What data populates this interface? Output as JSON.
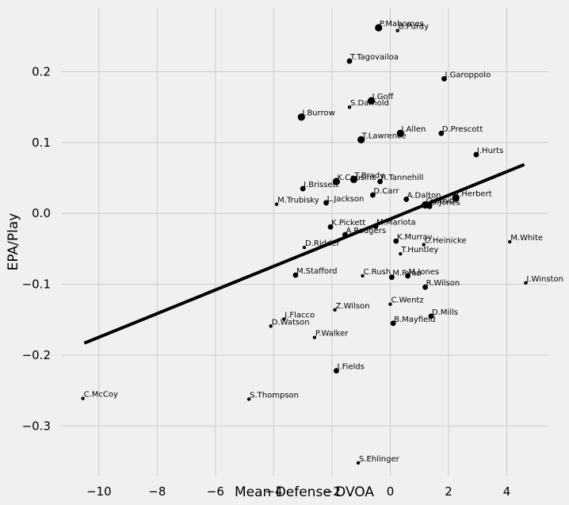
{
  "chart_data": {
    "type": "scatter",
    "title": "",
    "xlabel": "Mean Defense DVOA",
    "ylabel": "EPA/Play",
    "xlim": [
      -11.3,
      5.4
    ],
    "ylim": [
      -0.37,
      0.29
    ],
    "xticks": [
      -10,
      -8,
      -6,
      -4,
      -2,
      0,
      2,
      4
    ],
    "xtick_labels": [
      "−10",
      "−8",
      "−6",
      "−4",
      "−2",
      "0",
      "2",
      "4"
    ],
    "yticks": [
      -0.3,
      -0.2,
      -0.1,
      0.0,
      0.1,
      0.2
    ],
    "ytick_labels": [
      "−0.3",
      "−0.2",
      "−0.1",
      "0.0",
      "0.1",
      "0.2"
    ],
    "grid": true,
    "trendline": {
      "x": [
        -10.5,
        4.6
      ],
      "y": [
        -0.183,
        0.069
      ]
    },
    "points": [
      {
        "label": "P.Mahomes",
        "x": -0.4,
        "y": 0.262,
        "size": "large"
      },
      {
        "label": "B.Purdy",
        "x": 0.25,
        "y": 0.258,
        "size": "small"
      },
      {
        "label": "T.Tagovailoa",
        "x": -1.4,
        "y": 0.215,
        "size": "medium"
      },
      {
        "label": "J.Garoppolo",
        "x": 1.85,
        "y": 0.19,
        "size": "medium"
      },
      {
        "label": "J.Goff",
        "x": -0.65,
        "y": 0.159,
        "size": "large"
      },
      {
        "label": "S.Darnold",
        "x": -1.4,
        "y": 0.15,
        "size": "small"
      },
      {
        "label": "J.Burrow",
        "x": -3.05,
        "y": 0.136,
        "size": "large"
      },
      {
        "label": "J.Allen",
        "x": 0.35,
        "y": 0.113,
        "size": "large"
      },
      {
        "label": "D.Prescott",
        "x": 1.75,
        "y": 0.113,
        "size": "medium"
      },
      {
        "label": "T.Lawrence",
        "x": -1.0,
        "y": 0.104,
        "size": "large"
      },
      {
        "label": "J.Hurts",
        "x": 2.95,
        "y": 0.083,
        "size": "medium"
      },
      {
        "label": "K.Cousins",
        "x": -1.85,
        "y": 0.045,
        "size": "large"
      },
      {
        "label": "T.Brady",
        "x": -1.25,
        "y": 0.048,
        "size": "large"
      },
      {
        "label": "R.Tannehill",
        "x": -0.35,
        "y": 0.045,
        "size": "medium"
      },
      {
        "label": "J.Brissett",
        "x": -3.0,
        "y": 0.035,
        "size": "medium"
      },
      {
        "label": "D.Carr",
        "x": -0.6,
        "y": 0.026,
        "size": "medium"
      },
      {
        "label": "A.Dalton",
        "x": 0.55,
        "y": 0.02,
        "size": "medium"
      },
      {
        "label": "J.Herbert",
        "x": 2.25,
        "y": 0.022,
        "size": "large"
      },
      {
        "label": "G.Smith",
        "x": 1.2,
        "y": 0.012,
        "size": "large"
      },
      {
        "label": "D.Jones",
        "x": 1.35,
        "y": 0.01,
        "size": "medium"
      },
      {
        "label": "M.Trubisky",
        "x": -3.9,
        "y": 0.013,
        "size": "small"
      },
      {
        "label": "L.Jackson",
        "x": -2.2,
        "y": 0.015,
        "size": "medium"
      },
      {
        "label": "K.Pickett",
        "x": -2.05,
        "y": -0.019,
        "size": "medium"
      },
      {
        "label": "M.Mariota",
        "x": -0.5,
        "y": -0.018,
        "size": "medium"
      },
      {
        "label": "A.Rodgers",
        "x": -1.55,
        "y": -0.03,
        "size": "medium"
      },
      {
        "label": "K.Murray",
        "x": 0.2,
        "y": -0.039,
        "size": "medium"
      },
      {
        "label": "C.Heinicke",
        "x": 1.15,
        "y": -0.044,
        "size": "small"
      },
      {
        "label": "M.White",
        "x": 4.1,
        "y": -0.04,
        "size": "small"
      },
      {
        "label": "D.Ridder",
        "x": -2.95,
        "y": -0.048,
        "size": "small"
      },
      {
        "label": "T.Huntley",
        "x": 0.35,
        "y": -0.057,
        "size": "small"
      },
      {
        "label": "M.Stafford",
        "x": -3.25,
        "y": -0.087,
        "size": "medium"
      },
      {
        "label": "C.Rush",
        "x": -0.95,
        "y": -0.088,
        "size": "small"
      },
      {
        "label": "M.Ryan",
        "x": 0.05,
        "y": -0.09,
        "size": "medium"
      },
      {
        "label": "M.Jones",
        "x": 0.6,
        "y": -0.088,
        "size": "medium"
      },
      {
        "label": "R.Wilson",
        "x": 1.2,
        "y": -0.104,
        "size": "medium"
      },
      {
        "label": "J.Winston",
        "x": 4.65,
        "y": -0.098,
        "size": "small"
      },
      {
        "label": "C.Wentz",
        "x": 0.0,
        "y": -0.128,
        "size": "small"
      },
      {
        "label": "Z.Wilson",
        "x": -1.9,
        "y": -0.136,
        "size": "small"
      },
      {
        "label": "J.Flacco",
        "x": -3.65,
        "y": -0.149,
        "size": "small"
      },
      {
        "label": "D.Mills",
        "x": 1.4,
        "y": -0.145,
        "size": "medium"
      },
      {
        "label": "D.Watson",
        "x": -4.1,
        "y": -0.159,
        "size": "small"
      },
      {
        "label": "B.Mayfield",
        "x": 0.1,
        "y": -0.155,
        "size": "medium"
      },
      {
        "label": "P.Walker",
        "x": -2.6,
        "y": -0.175,
        "size": "small"
      },
      {
        "label": "J.Fields",
        "x": -1.85,
        "y": -0.222,
        "size": "medium"
      },
      {
        "label": "C.McCoy",
        "x": -10.55,
        "y": -0.261,
        "size": "small"
      },
      {
        "label": "S.Thompson",
        "x": -4.85,
        "y": -0.262,
        "size": "small"
      },
      {
        "label": "S.Ehlinger",
        "x": -1.1,
        "y": -0.352,
        "size": "small"
      }
    ]
  }
}
